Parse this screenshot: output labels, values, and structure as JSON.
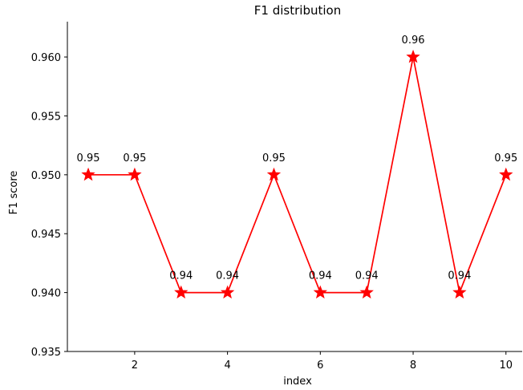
{
  "chart_data": {
    "type": "line",
    "title": "F1 distribution",
    "xlabel": "index",
    "ylabel": "F1 score",
    "xlim": [
      0.55,
      10.35
    ],
    "ylim": [
      0.935,
      0.963
    ],
    "x_ticks": [
      2,
      4,
      6,
      8,
      10
    ],
    "y_ticks": [
      0.935,
      0.94,
      0.945,
      0.95,
      0.955,
      0.96
    ],
    "y_tick_labels": [
      "0.935",
      "0.940",
      "0.945",
      "0.950",
      "0.955",
      "0.960"
    ],
    "grid": false,
    "series": [
      {
        "color": "#ff0000",
        "marker": "star",
        "x": [
          1,
          2,
          3,
          4,
          5,
          6,
          7,
          8,
          9,
          10
        ],
        "y": [
          0.95,
          0.95,
          0.94,
          0.94,
          0.95,
          0.94,
          0.94,
          0.96,
          0.94,
          0.95
        ],
        "labels": [
          "0.95",
          "0.95",
          "0.94",
          "0.94",
          "0.95",
          "0.94",
          "0.94",
          "0.96",
          "0.94",
          "0.95"
        ]
      }
    ]
  }
}
